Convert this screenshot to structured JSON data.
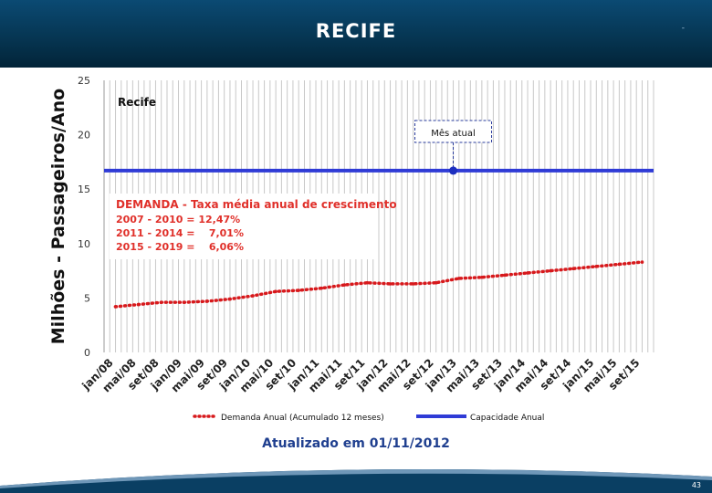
{
  "header": {
    "title": "RECIFE",
    "mark": "-"
  },
  "footer": {
    "page_number": "43"
  },
  "update_note": "Atualizado em 01/11/2012",
  "colors": {
    "header": "#063653",
    "demand": "#d7191c",
    "capacity": "#2f3bd6",
    "text_red": "#e0302a",
    "note": "#1f3f8f"
  },
  "chart_data": {
    "type": "line",
    "ylabel": "Milhões - Passageiros/Ano",
    "ylim": [
      0,
      25
    ],
    "yticks": [
      0,
      5,
      10,
      15,
      20,
      25
    ],
    "grid": "vertical",
    "legend_position": "bottom",
    "inner_title": "Recife",
    "current_month_label": "Mês atual",
    "current_month": "nov/12",
    "categories": [
      "jan/08",
      "mai/08",
      "set/08",
      "jan/09",
      "mai/09",
      "set/09",
      "jan/10",
      "mai/10",
      "set/10",
      "jan/11",
      "mai/11",
      "set/11",
      "jan/12",
      "mai/12",
      "set/12",
      "jan/13",
      "mai/13",
      "set/13",
      "jan/14",
      "mai/14",
      "set/14",
      "jan/15",
      "mai/15",
      "set/15"
    ],
    "series": [
      {
        "name": "Demanda Anual (Acumulado 12 meses)",
        "style": "dotted",
        "values": [
          4.2,
          4.4,
          4.6,
          4.6,
          4.7,
          4.9,
          5.2,
          5.6,
          5.7,
          5.9,
          6.2,
          6.4,
          6.3,
          6.3,
          6.4,
          6.8,
          6.9,
          7.1,
          7.3,
          7.5,
          7.7,
          7.9,
          8.1,
          8.3
        ]
      },
      {
        "name": "Capacidade Anual",
        "style": "solid",
        "values": [
          16.7,
          16.7,
          16.7,
          16.7,
          16.7,
          16.7,
          16.7,
          16.7,
          16.7,
          16.7,
          16.7,
          16.7,
          16.7,
          16.7,
          16.7,
          16.7,
          16.7,
          16.7,
          16.7,
          16.7,
          16.7,
          16.7,
          16.7,
          16.7
        ]
      }
    ],
    "annotation": {
      "title": "DEMANDA - Taxa média anual de crescimento",
      "lines": [
        "2007 - 2010 = 12,47%",
        "2011 - 2014 =    7,01%",
        "2015 - 2019 =    6,06%"
      ]
    }
  }
}
